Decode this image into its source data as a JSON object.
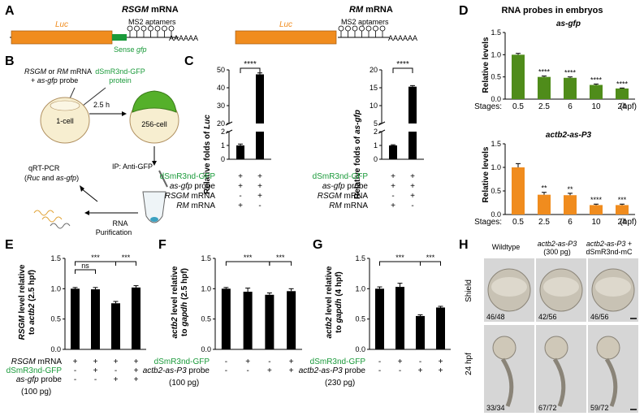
{
  "colors": {
    "luc": "#f08c1e",
    "gfp": "#1a9a3a",
    "bar": "#000000",
    "green_bar": "#4f8c1a",
    "orange_bar": "#f08c1e",
    "text_green": "#1a9a3a"
  },
  "panels": {
    "A": "A",
    "B": "B",
    "C": "C",
    "D": "D",
    "E": "E",
    "F": "F",
    "G": "G",
    "H": "H"
  },
  "panelA": {
    "left_title_italic": "RSGM",
    "left_title_rest": " mRNA",
    "right_title_italic": "RM",
    "right_title_rest": " mRNA",
    "luc": "Luc",
    "ms2": "MS2 aptamers",
    "polyA": "AAAAAA",
    "sense_prefix": "Sense ",
    "sense_italic": "gfp"
  },
  "panelB": {
    "line1_italic_a": "RSGM",
    "line1_mid": " or ",
    "line1_italic_b": "RM",
    "line1_end": " mRNA",
    "line2_prefix": "+ ",
    "line2_italic": "as-gfp",
    "line2_end": " probe",
    "protein1": "dSmR3nd-GFP",
    "protein2": "protein",
    "cell1": "1-cell",
    "cell2": "256-cell",
    "time": "2.5 h",
    "ip": "IP: Anti-GFP",
    "qrt1": "qRT-PCR",
    "qrt2_open": "(",
    "qrt2_a": "Ruc",
    "qrt2_mid": " and ",
    "qrt2_b": "as-gfp",
    "qrt2_close": ")",
    "rna1": "RNA",
    "rna2": "Purification"
  },
  "panelC": {
    "ylabel_left_prefix": "Relative folds of ",
    "ylabel_left_italic": "Luc",
    "ylabel_right_prefix": "Relative folds of ",
    "ylabel_right_italic": "as-gfp",
    "sig": "****",
    "rows": [
      {
        "label": "dSmR3nd-GFP",
        "italic": "",
        "rest": "",
        "green": true,
        "vals": [
          "+",
          "+"
        ]
      },
      {
        "label": "",
        "italic": "as-gfp",
        "rest": " probe",
        "green": false,
        "vals": [
          "+",
          "+"
        ]
      },
      {
        "label": "",
        "italic": "RSGM",
        "rest": " mRNA",
        "green": false,
        "vals": [
          "-",
          "+"
        ]
      },
      {
        "label": "",
        "italic": "RM",
        "rest": " mRNA",
        "green": false,
        "vals": [
          "+",
          "-"
        ]
      }
    ]
  },
  "panelD": {
    "title": "RNA probes in embryos",
    "ylabel": "Relative levels",
    "stages_label": "Stages:",
    "unit": "(hpf)"
  },
  "panelE": {
    "ylabel_a": "RSGM",
    "ylabel_b": " level relative",
    "ylabel_c": "to ",
    "ylabel_d": "actb2",
    "ylabel_e": " (2.5 hpf)",
    "ns": "ns",
    "sig": "***",
    "rows": [
      {
        "italic": "RSGM",
        "rest": " mRNA",
        "green": false,
        "vals": [
          "+",
          "+",
          "+",
          "+"
        ]
      },
      {
        "italic": "",
        "rest": "dSmR3nd-GFP",
        "green": true,
        "vals": [
          "-",
          "+",
          "-",
          "+"
        ]
      },
      {
        "italic": "as-gfp",
        "rest": " probe",
        "green": false,
        "vals": [
          "-",
          "-",
          "+",
          "+"
        ]
      }
    ],
    "dose": "(100 pg)"
  },
  "panelF": {
    "ylabel_a": "actb2",
    "ylabel_b": " level relative",
    "ylabel_c": "to ",
    "ylabel_d": "gapdh",
    "ylabel_e": " (2.5 hpf)",
    "sig": "***",
    "rows": [
      {
        "italic": "",
        "rest": "dSmR3nd-GFP",
        "green": true,
        "vals": [
          "-",
          "+",
          "-",
          "+"
        ]
      },
      {
        "italic": "actb2-as-P3",
        "rest": " probe",
        "green": false,
        "vals": [
          "-",
          "-",
          "+",
          "+"
        ]
      }
    ],
    "dose": "(100 pg)"
  },
  "panelG": {
    "ylabel_a": "actb2",
    "ylabel_b": " level relative",
    "ylabel_c": "to ",
    "ylabel_d": "gapdh",
    "ylabel_e": " (4 hpf)",
    "sig": "***",
    "rows": [
      {
        "italic": "",
        "rest": "dSmR3nd-GFP",
        "green": true,
        "vals": [
          "-",
          "+",
          "-",
          "+"
        ]
      },
      {
        "italic": "actb2-as-P3",
        "rest": " probe",
        "green": false,
        "vals": [
          "-",
          "-",
          "+",
          "+"
        ]
      }
    ],
    "dose": "(230 pg)"
  },
  "panelH": {
    "col1": "Wildtype",
    "col2_italic": "actb2-as-P3",
    "col2_b": "(300 pg)",
    "col3_italic": "actb2-as-P3",
    "col3_plus": " +",
    "col3_b": "dSmR3nd-mC",
    "row1": "Shield",
    "row2": "24 hpf",
    "counts": [
      "46/48",
      "42/56",
      "46/56",
      "33/34",
      "67/72",
      "59/72"
    ]
  },
  "chart_data": [
    {
      "id": "C_left",
      "type": "bar",
      "ylabel": "Relative folds of Luc",
      "categories": [
        "RM",
        "RSGM"
      ],
      "values": [
        1.0,
        47.5
      ],
      "errors": [
        0.1,
        0.8
      ],
      "ybreak": [
        2,
        20
      ],
      "ticks_low": [
        0,
        1,
        2
      ],
      "ticks_high": [
        20,
        30,
        40,
        50
      ],
      "significance": "****"
    },
    {
      "id": "C_right",
      "type": "bar",
      "ylabel": "Relative folds of as-gfp",
      "categories": [
        "RM",
        "RSGM"
      ],
      "values": [
        1.0,
        15.3
      ],
      "errors": [
        0.05,
        0.3
      ],
      "ybreak": [
        2,
        5
      ],
      "ticks_low": [
        0,
        1,
        2
      ],
      "ticks_high": [
        5,
        10,
        15,
        20
      ],
      "significance": "****"
    },
    {
      "id": "D_top",
      "type": "bar",
      "title": "as-gfp",
      "ylabel": "Relative levels",
      "xlabel": "Stages (hpf)",
      "categories": [
        "0.5",
        "2.5",
        "6",
        "10",
        "24"
      ],
      "values": [
        1.0,
        0.5,
        0.48,
        0.32,
        0.24
      ],
      "errors": [
        0.03,
        0.02,
        0.02,
        0.02,
        0.01
      ],
      "sig": [
        "",
        "****",
        "****",
        "****",
        "****"
      ],
      "ylim": [
        0,
        1.5
      ],
      "ticks": [
        0,
        0.5,
        1.0,
        1.5
      ]
    },
    {
      "id": "D_bottom",
      "type": "bar",
      "title": "actb2-as-P3",
      "ylabel": "Relative levels",
      "xlabel": "Stages (hpf)",
      "categories": [
        "0.5",
        "2.5",
        "6",
        "10",
        "24"
      ],
      "values": [
        1.0,
        0.42,
        0.41,
        0.2,
        0.2
      ],
      "errors": [
        0.08,
        0.05,
        0.04,
        0.02,
        0.02
      ],
      "sig": [
        "",
        "**",
        "**",
        "****",
        "***"
      ],
      "ylim": [
        0,
        1.5
      ],
      "ticks": [
        0,
        0.5,
        1.0,
        1.5
      ]
    },
    {
      "id": "E",
      "type": "bar",
      "ylabel": "RSGM level relative to actb2 (2.5 hpf)",
      "values": [
        1.0,
        0.99,
        0.76,
        1.02
      ],
      "errors": [
        0.02,
        0.03,
        0.03,
        0.03
      ],
      "ylim": [
        0,
        1.5
      ],
      "ticks": [
        0,
        0.5,
        1.0,
        1.5
      ]
    },
    {
      "id": "F",
      "type": "bar",
      "ylabel": "actb2 level relative to gapdh (2.5 hpf)",
      "values": [
        1.0,
        0.95,
        0.9,
        0.96
      ],
      "errors": [
        0.02,
        0.06,
        0.03,
        0.04
      ],
      "ylim": [
        0,
        1.5
      ],
      "ticks": [
        0,
        0.5,
        1.0,
        1.5
      ]
    },
    {
      "id": "G",
      "type": "bar",
      "ylabel": "actb2 level relative to gapdh (4 hpf)",
      "values": [
        1.0,
        1.03,
        0.55,
        0.69
      ],
      "errors": [
        0.03,
        0.06,
        0.02,
        0.02
      ],
      "ylim": [
        0,
        1.5
      ],
      "ticks": [
        0,
        0.5,
        1.0,
        1.5
      ]
    }
  ]
}
